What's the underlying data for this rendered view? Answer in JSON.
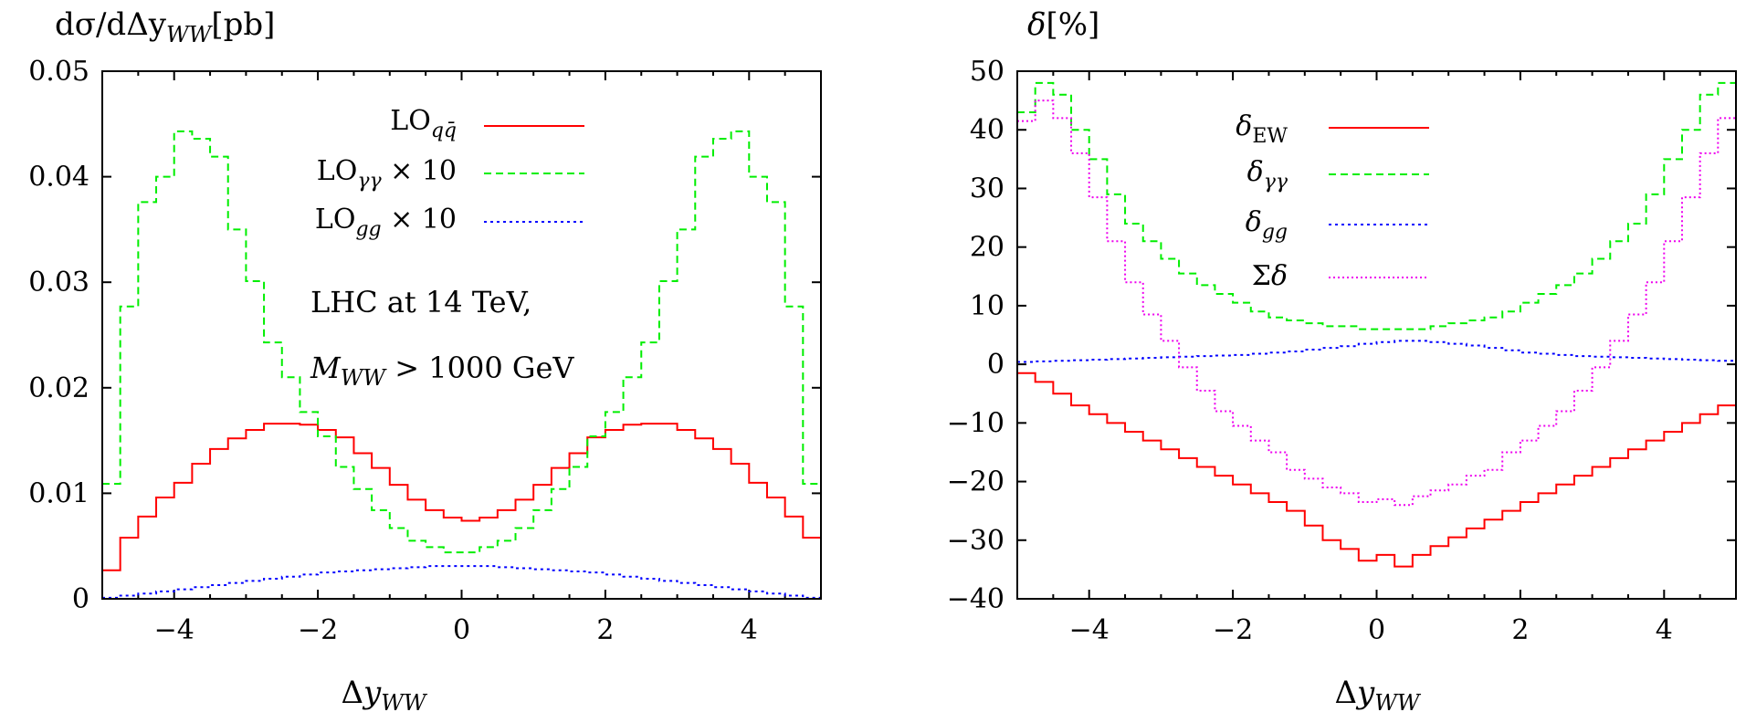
{
  "chart_data": [
    {
      "type": "line",
      "step": true,
      "ylabel": "dσ/dΔy_WW[pb]",
      "xlabel": "Δy_WW",
      "xlim": [
        -5,
        5
      ],
      "ylim": [
        0,
        0.05
      ],
      "xticks": [
        "−4",
        "−2",
        "0",
        "2",
        "4"
      ],
      "yticks": [
        "0",
        "0.01",
        "0.02",
        "0.03",
        "0.04",
        "0.05"
      ],
      "grid": false,
      "legend": "top-center",
      "annotations": [
        "LHC at 14 TeV,",
        "M_WW > 1000 GeV"
      ],
      "x_edges": [
        -5,
        -4.75,
        -4.5,
        -4.25,
        -4,
        -3.75,
        -3.5,
        -3.25,
        -3,
        -2.75,
        -2.5,
        -2.25,
        -2,
        -1.75,
        -1.5,
        -1.25,
        -1,
        -0.75,
        -0.5,
        -0.25,
        0,
        0.25,
        0.5,
        0.75,
        1,
        1.25,
        1.5,
        1.75,
        2,
        2.25,
        2.5,
        2.75,
        3,
        3.25,
        3.5,
        3.75,
        4,
        4.25,
        4.5,
        4.75,
        5
      ],
      "series": [
        {
          "name": "LO_qq̄",
          "color": "#ff0000",
          "dash": "solid",
          "values": [
            0.0027,
            0.0058,
            0.0078,
            0.0096,
            0.011,
            0.0128,
            0.0142,
            0.0152,
            0.016,
            0.0166,
            0.0166,
            0.0165,
            0.016,
            0.0153,
            0.0138,
            0.0124,
            0.0108,
            0.0094,
            0.0084,
            0.0077,
            0.0074,
            0.0077,
            0.0084,
            0.0094,
            0.0108,
            0.0124,
            0.0138,
            0.0153,
            0.016,
            0.0165,
            0.0166,
            0.0166,
            0.016,
            0.0152,
            0.0142,
            0.0128,
            0.011,
            0.0096,
            0.0078,
            0.0058
          ]
        },
        {
          "name": "LO_γγ × 10",
          "color": "#00ee00",
          "dash": "dashed",
          "values": [
            0.0109,
            0.0277,
            0.0376,
            0.04,
            0.0443,
            0.0436,
            0.0419,
            0.035,
            0.0301,
            0.0243,
            0.021,
            0.0177,
            0.0154,
            0.0125,
            0.0104,
            0.0084,
            0.0067,
            0.0055,
            0.0049,
            0.0044,
            0.0044,
            0.0049,
            0.0055,
            0.0067,
            0.0084,
            0.0104,
            0.0125,
            0.0154,
            0.0177,
            0.021,
            0.0243,
            0.0301,
            0.035,
            0.0419,
            0.0436,
            0.0443,
            0.04,
            0.0376,
            0.0277,
            0.0109
          ]
        },
        {
          "name": "LO_gg × 10",
          "color": "#0000ff",
          "dash": "dotted",
          "values": [
            0.0001,
            0.0003,
            0.0005,
            0.0007,
            0.0009,
            0.0011,
            0.0013,
            0.0015,
            0.0017,
            0.0019,
            0.0021,
            0.0023,
            0.0025,
            0.0026,
            0.0027,
            0.0028,
            0.0029,
            0.003,
            0.0031,
            0.0031,
            0.0031,
            0.0031,
            0.003,
            0.0029,
            0.0028,
            0.0027,
            0.0026,
            0.0025,
            0.0023,
            0.0021,
            0.0019,
            0.0017,
            0.0015,
            0.0013,
            0.0011,
            0.0009,
            0.0007,
            0.0005,
            0.0003,
            0.0001
          ]
        }
      ]
    },
    {
      "type": "line",
      "step": true,
      "ylabel": "δ[%]",
      "xlabel": "Δy_WW",
      "xlim": [
        -5,
        5
      ],
      "ylim": [
        -40,
        50
      ],
      "xticks": [
        "−4",
        "−2",
        "0",
        "2",
        "4"
      ],
      "yticks": [
        "−40",
        "−30",
        "−20",
        "−10",
        "0",
        "10",
        "20",
        "30",
        "40",
        "50"
      ],
      "grid": false,
      "legend": "top-center",
      "x_edges": [
        -5,
        -4.75,
        -4.5,
        -4.25,
        -4,
        -3.75,
        -3.5,
        -3.25,
        -3,
        -2.75,
        -2.5,
        -2.25,
        -2,
        -1.75,
        -1.5,
        -1.25,
        -1,
        -0.75,
        -0.5,
        -0.25,
        0,
        0.25,
        0.5,
        0.75,
        1,
        1.25,
        1.5,
        1.75,
        2,
        2.25,
        2.5,
        2.75,
        3,
        3.25,
        3.5,
        3.75,
        4,
        4.25,
        4.5,
        4.75,
        5
      ],
      "series": [
        {
          "name": "δ_EW",
          "color": "#ff0000",
          "dash": "solid",
          "values": [
            -1.5,
            -3,
            -5,
            -7,
            -8.5,
            -10,
            -11.5,
            -13,
            -14.5,
            -16,
            -17.5,
            -19,
            -20.5,
            -22,
            -23.5,
            -25,
            -27.5,
            -30,
            -31.5,
            -33.5,
            -32.5,
            -34.5,
            -32.5,
            -31,
            -29.5,
            -28,
            -26.5,
            -25,
            -23.5,
            -22,
            -20.5,
            -19,
            -17.5,
            -16,
            -14.5,
            -13,
            -11.5,
            -10,
            -8.5,
            -7
          ]
        },
        {
          "name": "δ_γγ",
          "color": "#00ee00",
          "dash": "dashed",
          "values": [
            43,
            48,
            46,
            40,
            35,
            29,
            24,
            21,
            18,
            15.5,
            13.5,
            12,
            10.5,
            9,
            8,
            7.5,
            7,
            6.5,
            6.5,
            6,
            6,
            6,
            6,
            6.5,
            7,
            7.5,
            8,
            9,
            10.5,
            12,
            13.5,
            15.5,
            18,
            21,
            24,
            29,
            35,
            40,
            46,
            48
          ]
        },
        {
          "name": "δ_gg",
          "color": "#0000ff",
          "dash": "dotted",
          "values": [
            0.4,
            0.5,
            0.6,
            0.7,
            0.8,
            0.9,
            1.0,
            1.1,
            1.2,
            1.3,
            1.4,
            1.5,
            1.6,
            1.8,
            2.0,
            2.2,
            2.5,
            2.8,
            3.1,
            3.5,
            3.8,
            4.0,
            4.0,
            3.8,
            3.5,
            3.2,
            2.8,
            2.4,
            2.0,
            1.8,
            1.6,
            1.4,
            1.3,
            1.2,
            1.1,
            1.0,
            0.9,
            0.8,
            0.7,
            0.6
          ]
        },
        {
          "name": "Σδ",
          "color": "#ee00ee",
          "dash": "dotted",
          "values": [
            41.5,
            45,
            42,
            36,
            28.5,
            21,
            14,
            8.5,
            4,
            -0.5,
            -4.5,
            -8,
            -10.5,
            -13,
            -15,
            -18,
            -19.5,
            -21,
            -22,
            -23.5,
            -23,
            -24,
            -22.5,
            -21.5,
            -20.5,
            -19,
            -18,
            -15,
            -13,
            -10.5,
            -8,
            -4.5,
            -0.5,
            4,
            8.5,
            14,
            21,
            28.5,
            36,
            42
          ]
        }
      ]
    }
  ]
}
